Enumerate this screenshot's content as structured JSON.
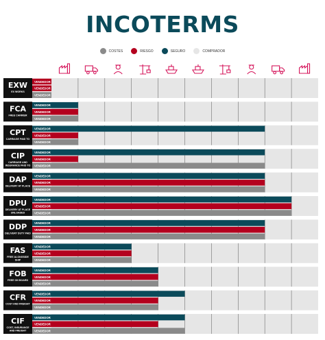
{
  "title": "INCOTERMS",
  "legend": [
    {
      "label": "COSTES",
      "color": "#8a8a8a"
    },
    {
      "label": "RIESGO",
      "color": "#b4001e"
    },
    {
      "label": "SEGURO",
      "color": "#0b4a5a"
    },
    {
      "label": "COMPRADOR",
      "color": "#e6e6e6"
    }
  ],
  "colors": {
    "seguro": "#0b4a5a",
    "riesgo": "#b4001e",
    "costes": "#8a8a8a",
    "comprador": "#e6e6e6",
    "icon": "#d4145a",
    "label_bg": "#111111"
  },
  "icons": [
    "factory-icon",
    "truck-icon",
    "customs-officer-icon",
    "crane-icon",
    "ship-icon",
    "ship-icon",
    "crane-icon",
    "customs-officer-icon",
    "truck-icon",
    "factory-icon"
  ],
  "chart_data": {
    "type": "bar",
    "bar_label": "VENDEDOR",
    "stages": 10,
    "rows": [
      {
        "code": "EXW",
        "desc": [
          "EX WORKS"
        ],
        "bars": [
          {
            "color": "riesgo",
            "value": 0
          },
          {
            "color": "riesgo",
            "value": 0
          },
          {
            "color": "costes",
            "value": 0
          }
        ]
      },
      {
        "code": "FCA",
        "desc": [
          "FREE CARRIER"
        ],
        "bars": [
          {
            "color": "seguro",
            "value": 1
          },
          {
            "color": "riesgo",
            "value": 1
          },
          {
            "color": "costes",
            "value": 1
          }
        ]
      },
      {
        "code": "CPT",
        "desc": [
          "CARRIAGE PAID TO"
        ],
        "bars": [
          {
            "color": "seguro",
            "value": 8
          },
          {
            "color": "riesgo",
            "value": 1
          },
          {
            "color": "costes",
            "value": 1
          }
        ]
      },
      {
        "code": "CIP",
        "desc": [
          "CARRIAGE AND",
          "INSURANCE PAID TO"
        ],
        "bars": [
          {
            "color": "seguro",
            "value": 8
          },
          {
            "color": "riesgo",
            "value": 1
          },
          {
            "color": "costes",
            "value": 8
          }
        ]
      },
      {
        "code": "DAP",
        "desc": [
          "DELIVERY AT PLACE"
        ],
        "bars": [
          {
            "color": "seguro",
            "value": 8
          },
          {
            "color": "riesgo",
            "value": 8
          },
          {
            "color": "costes",
            "value": 8
          }
        ]
      },
      {
        "code": "DPU",
        "desc": [
          "DELIVERY AT PLACE",
          "UNLOADED"
        ],
        "bars": [
          {
            "color": "seguro",
            "value": 9
          },
          {
            "color": "riesgo",
            "value": 9
          },
          {
            "color": "costes",
            "value": 9
          }
        ]
      },
      {
        "code": "DDP",
        "desc": [
          "DELIVERY DUTY PAID"
        ],
        "bars": [
          {
            "color": "seguro",
            "value": 8
          },
          {
            "color": "riesgo",
            "value": 8
          },
          {
            "color": "costes",
            "value": 8
          }
        ]
      },
      {
        "code": "FAS",
        "desc": [
          "FREE ALONGSIDE",
          "SHIP"
        ],
        "bars": [
          {
            "color": "seguro",
            "value": 3
          },
          {
            "color": "riesgo",
            "value": 3
          },
          {
            "color": "costes",
            "value": 3
          }
        ]
      },
      {
        "code": "FOB",
        "desc": [
          "FREE ON BOARD"
        ],
        "bars": [
          {
            "color": "seguro",
            "value": 4
          },
          {
            "color": "riesgo",
            "value": 4
          },
          {
            "color": "costes",
            "value": 4
          }
        ]
      },
      {
        "code": "CFR",
        "desc": [
          "COST AND FREIGHT"
        ],
        "bars": [
          {
            "color": "seguro",
            "value": 5
          },
          {
            "color": "riesgo",
            "value": 4
          },
          {
            "color": "costes",
            "value": 4
          }
        ]
      },
      {
        "code": "CIF",
        "desc": [
          "COST, INSURANCE",
          "AND FREIGHT"
        ],
        "bars": [
          {
            "color": "seguro",
            "value": 5
          },
          {
            "color": "riesgo",
            "value": 4
          },
          {
            "color": "costes",
            "value": 5
          }
        ]
      }
    ]
  }
}
